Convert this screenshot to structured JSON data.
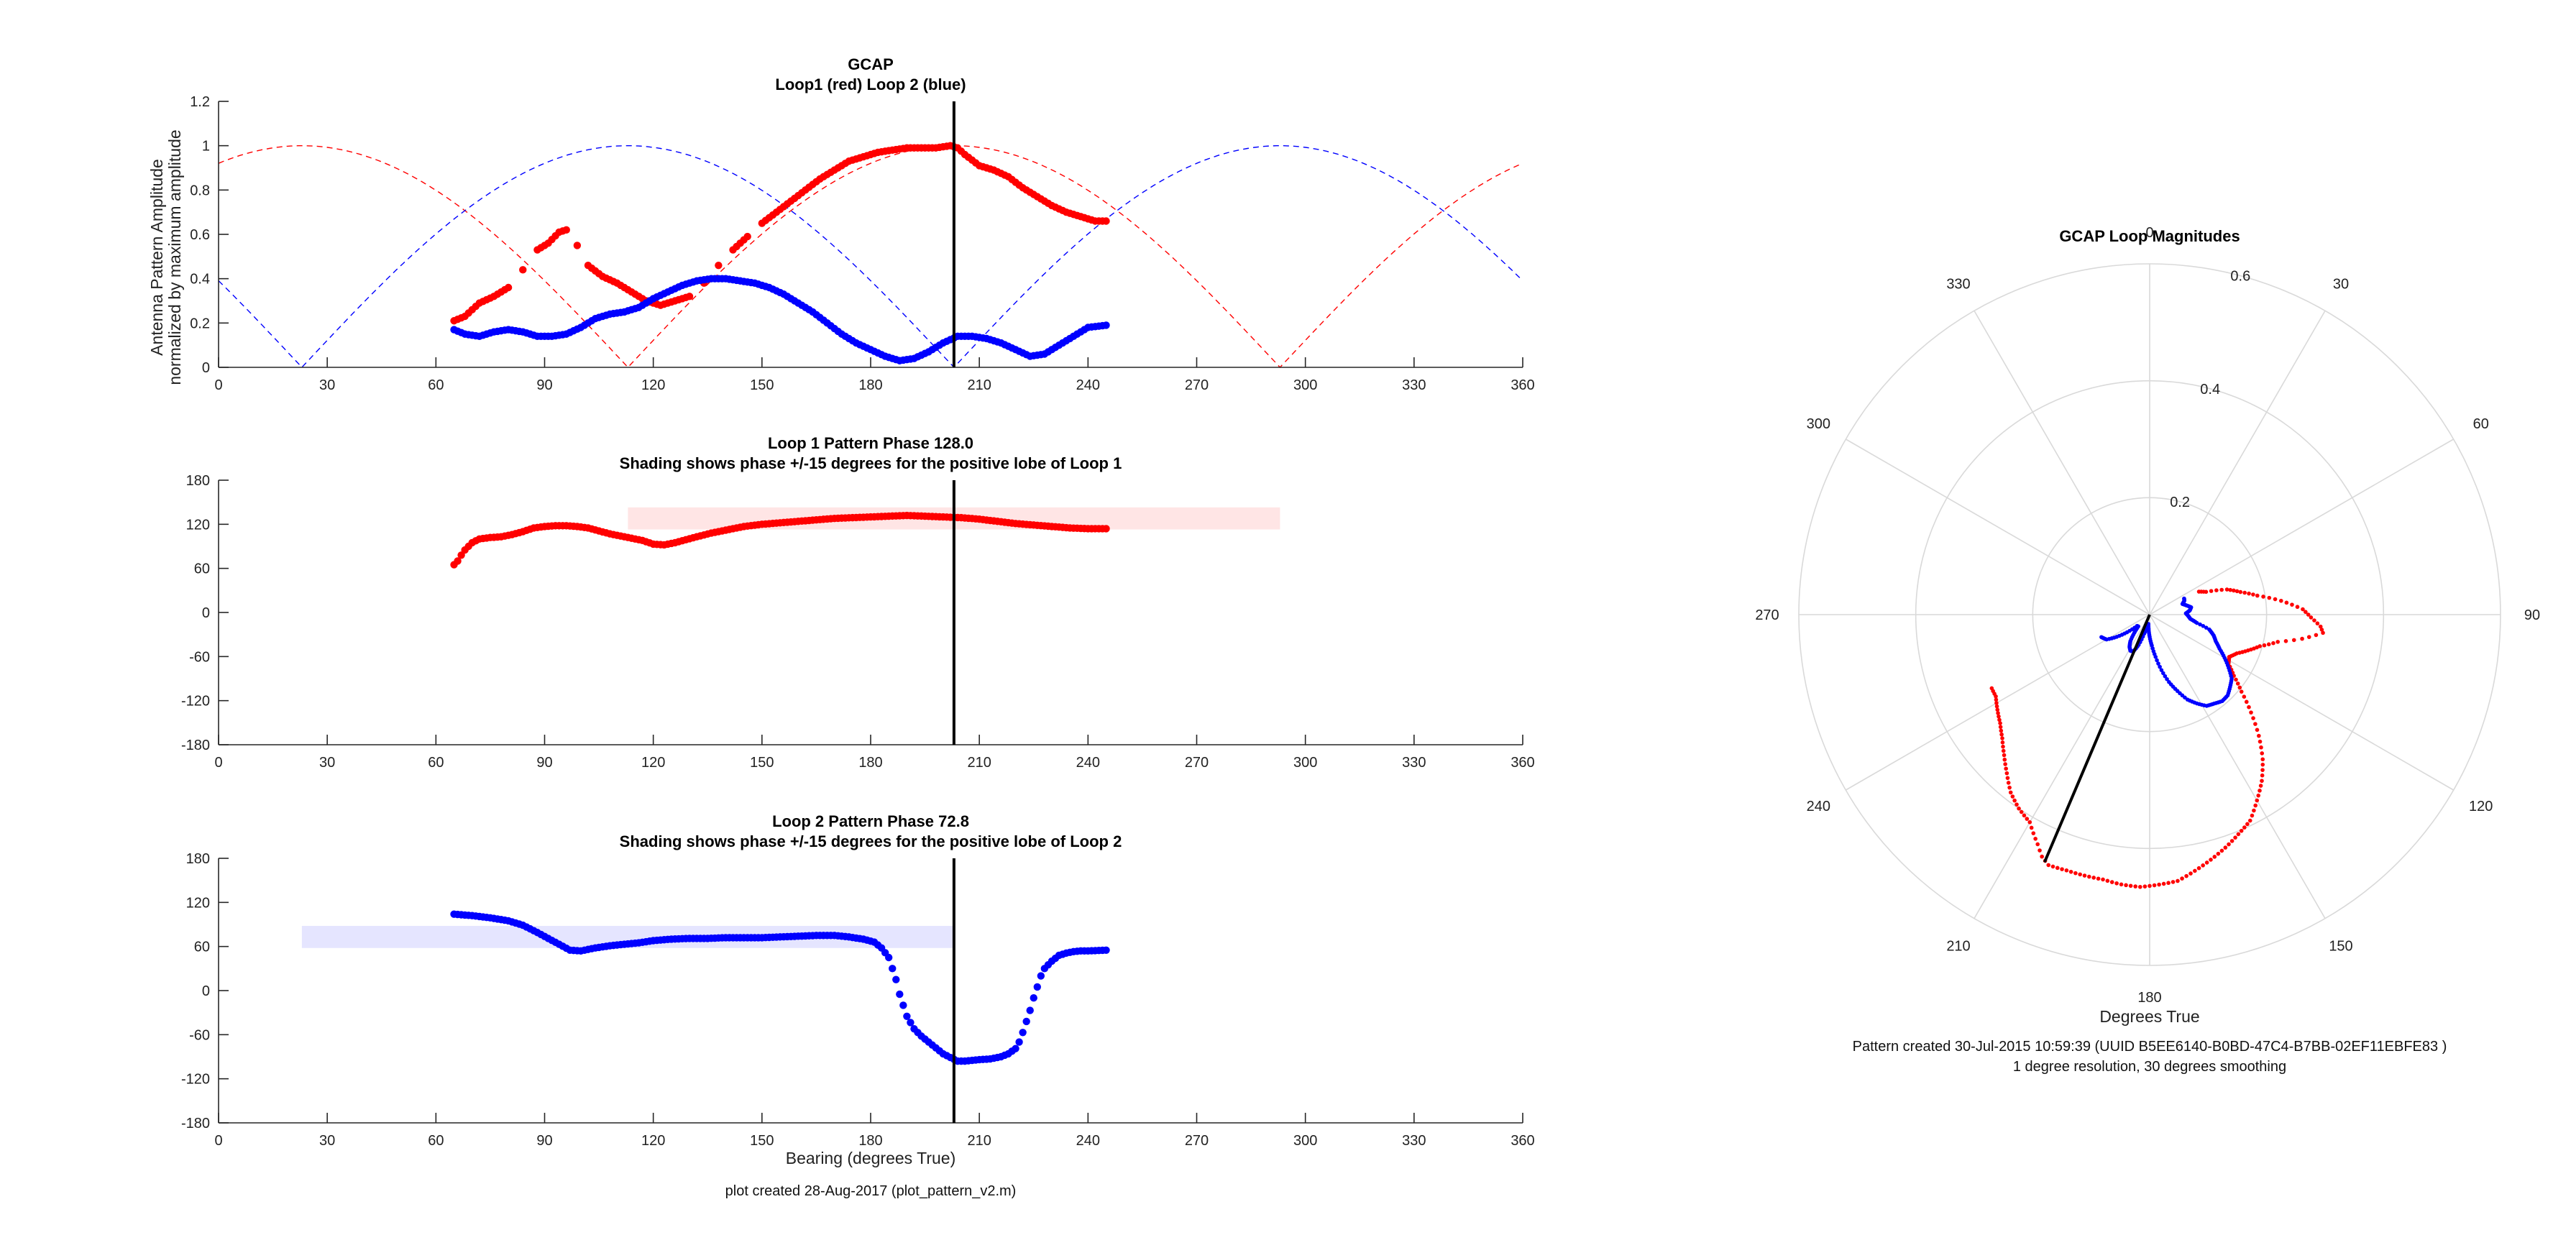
{
  "footer_note": "plot created 28-Aug-2017 (plot_pattern_v2.m)",
  "polar_note_line1": "Pattern created 30-Jul-2015 10:59:39 (UUID B5EE6140-B0BD-47C4-B7BB-02EF11EBFE83 )",
  "polar_note_line2": "1 degree resolution, 30 degrees smoothing",
  "colors": {
    "loop1": "#ff0000",
    "loop2": "#0000ff",
    "shade1": "#ffe5e5",
    "shade2": "#e5e5ff",
    "bearing_line": "#000000"
  },
  "chart_data": [
    {
      "type": "scatter",
      "title": "GCAP",
      "subtitle": "Loop1 (red) Loop 2 (blue)",
      "ylabel": "Antenna Pattern Amplitude",
      "ylabel2": "normalized by maximum amplitude",
      "xlabel": "",
      "xlim": [
        0,
        360
      ],
      "ylim": [
        0,
        1.2
      ],
      "xticks": [
        "0",
        "30",
        "60",
        "90",
        "120",
        "150",
        "180",
        "210",
        "240",
        "270",
        "300",
        "330",
        "360"
      ],
      "yticks": [
        "0",
        "0.2",
        "0.4",
        "0.6",
        "0.8",
        "1",
        "1.2"
      ],
      "bearing_marker": 203,
      "ideal_patterns": [
        {
          "series": "loop1",
          "style": "dashed",
          "formula": "abs(cos(theta - 203))"
        },
        {
          "series": "loop2",
          "style": "dashed",
          "formula": "abs(cos(theta - 113))"
        }
      ],
      "series": [
        {
          "key": "loop1",
          "x": [
            65,
            68,
            72,
            76,
            80,
            84,
            88,
            91,
            94,
            96,
            99,
            102,
            106,
            110,
            114,
            118,
            122,
            126,
            130,
            134,
            138,
            142,
            146,
            150,
            154,
            158,
            162,
            166,
            170,
            174,
            178,
            182,
            186,
            190,
            194,
            198,
            202,
            204,
            206,
            210,
            214,
            218,
            222,
            226,
            230,
            234,
            238,
            242,
            245
          ],
          "y": [
            0.21,
            0.23,
            0.29,
            0.32,
            0.36,
            0.44,
            0.53,
            0.56,
            0.61,
            0.62,
            0.55,
            0.46,
            0.41,
            0.38,
            0.34,
            0.3,
            0.28,
            0.3,
            0.32,
            0.38,
            0.46,
            0.53,
            0.59,
            0.65,
            0.7,
            0.75,
            0.8,
            0.85,
            0.89,
            0.93,
            0.95,
            0.97,
            0.98,
            0.99,
            0.99,
            0.99,
            1.0,
            0.99,
            0.96,
            0.91,
            0.89,
            0.86,
            0.81,
            0.77,
            0.73,
            0.7,
            0.68,
            0.66,
            0.66
          ]
        },
        {
          "key": "loop2",
          "x": [
            65,
            68,
            72,
            76,
            80,
            84,
            88,
            92,
            96,
            100,
            104,
            108,
            112,
            116,
            120,
            124,
            128,
            132,
            136,
            140,
            144,
            148,
            152,
            156,
            160,
            164,
            168,
            172,
            176,
            180,
            184,
            188,
            192,
            196,
            200,
            204,
            208,
            212,
            216,
            220,
            224,
            228,
            232,
            236,
            240,
            245
          ],
          "y": [
            0.17,
            0.15,
            0.14,
            0.16,
            0.17,
            0.16,
            0.14,
            0.14,
            0.15,
            0.18,
            0.22,
            0.24,
            0.25,
            0.27,
            0.31,
            0.34,
            0.37,
            0.39,
            0.4,
            0.4,
            0.39,
            0.38,
            0.36,
            0.33,
            0.29,
            0.25,
            0.2,
            0.15,
            0.11,
            0.08,
            0.05,
            0.03,
            0.04,
            0.07,
            0.11,
            0.14,
            0.14,
            0.13,
            0.11,
            0.08,
            0.05,
            0.06,
            0.1,
            0.14,
            0.18,
            0.19
          ]
        }
      ]
    },
    {
      "type": "scatter",
      "title": "Loop 1 Pattern Phase 128.0",
      "subtitle": "Shading shows phase +/-15 degrees for the positive lobe of Loop 1",
      "xlabel": "",
      "ylabel": "",
      "xlim": [
        0,
        360
      ],
      "ylim": [
        -180,
        180
      ],
      "xticks": [
        "0",
        "30",
        "60",
        "90",
        "120",
        "150",
        "180",
        "210",
        "240",
        "270",
        "300",
        "330",
        "360"
      ],
      "yticks": [
        "-180",
        "-120",
        "-60",
        "0",
        "60",
        "120",
        "180"
      ],
      "bearing_marker": 203,
      "shade": {
        "x": [
          113,
          293
        ],
        "y": [
          113,
          143
        ]
      },
      "series": [
        {
          "key": "loop1",
          "x": [
            65,
            66,
            67,
            68,
            70,
            72,
            75,
            78,
            81,
            84,
            87,
            90,
            93,
            96,
            99,
            102,
            105,
            108,
            111,
            114,
            117,
            120,
            123,
            126,
            129,
            132,
            136,
            140,
            145,
            150,
            155,
            160,
            165,
            170,
            175,
            180,
            185,
            190,
            195,
            200,
            205,
            210,
            215,
            220,
            225,
            230,
            235,
            240,
            245
          ],
          "y": [
            65,
            70,
            78,
            85,
            95,
            100,
            102,
            103,
            106,
            110,
            115,
            117,
            118,
            118,
            117,
            115,
            111,
            107,
            104,
            101,
            98,
            93,
            92,
            95,
            99,
            103,
            108,
            112,
            117,
            120,
            122,
            124,
            126,
            128,
            129,
            130,
            131,
            132,
            131,
            130,
            129,
            127,
            124,
            121,
            119,
            117,
            115,
            114,
            114
          ]
        }
      ]
    },
    {
      "type": "scatter",
      "title": "Loop 2 Pattern Phase 72.8",
      "subtitle": "Shading shows phase +/-15 degrees for the positive lobe of Loop 2",
      "xlabel": "Bearing (degrees True)",
      "ylabel": "",
      "xlim": [
        0,
        360
      ],
      "ylim": [
        -180,
        180
      ],
      "xticks": [
        "0",
        "30",
        "60",
        "90",
        "120",
        "150",
        "180",
        "210",
        "240",
        "270",
        "300",
        "330",
        "360"
      ],
      "yticks": [
        "-180",
        "-120",
        "-60",
        "0",
        "60",
        "120",
        "180"
      ],
      "bearing_marker": 203,
      "shade": {
        "x": [
          23,
          203
        ],
        "y": [
          58,
          88
        ]
      },
      "series": [
        {
          "key": "loop2",
          "x": [
            65,
            70,
            75,
            80,
            84,
            88,
            91,
            94,
            97,
            100,
            104,
            108,
            112,
            116,
            120,
            125,
            130,
            135,
            140,
            145,
            150,
            155,
            160,
            165,
            170,
            174,
            178,
            181,
            183,
            185,
            186,
            187,
            188,
            189,
            190,
            192,
            194,
            196,
            198,
            200,
            202,
            204,
            206,
            208,
            210,
            213,
            216,
            218,
            220,
            221,
            222,
            223,
            224,
            225,
            226,
            227,
            228,
            230,
            232,
            234,
            236,
            238,
            240,
            245
          ],
          "y": [
            104,
            102,
            99,
            95,
            89,
            79,
            71,
            63,
            55,
            54,
            58,
            61,
            63,
            65,
            68,
            70,
            71,
            71,
            72,
            72,
            72,
            73,
            74,
            75,
            75,
            73,
            70,
            66,
            58,
            45,
            30,
            15,
            -5,
            -20,
            -35,
            -52,
            -62,
            -70,
            -78,
            -86,
            -91,
            -96,
            -96,
            -95,
            -94,
            -93,
            -90,
            -86,
            -79,
            -70,
            -57,
            -42,
            -27,
            -10,
            5,
            20,
            30,
            40,
            48,
            51,
            53,
            54,
            54,
            55
          ]
        }
      ]
    },
    {
      "type": "polar",
      "title": "GCAP Loop Magnitudes",
      "xlabel": "Degrees True",
      "rlim": [
        0,
        0.6
      ],
      "rticks": [
        "0.2",
        "0.4",
        "0.6"
      ],
      "theta_ticks": [
        "0",
        "30",
        "60",
        "90",
        "120",
        "150",
        "180",
        "210",
        "240",
        "270",
        "300",
        "330"
      ],
      "bearing_marker": 203,
      "bearing_marker_r": 0.46,
      "series": [
        {
          "key": "loop1",
          "theta": [
            65,
            68,
            72,
            76,
            80,
            84,
            88,
            91,
            94,
            96,
            99,
            102,
            106,
            110,
            114,
            118,
            122,
            126,
            130,
            134,
            138,
            142,
            146,
            150,
            154,
            158,
            162,
            166,
            170,
            174,
            178,
            182,
            186,
            190,
            194,
            198,
            202,
            204,
            206,
            210,
            214,
            218,
            222,
            226,
            230,
            234,
            238,
            242,
            245
          ],
          "r": [
            0.093,
            0.104,
            0.139,
            0.16,
            0.187,
            0.226,
            0.262,
            0.276,
            0.293,
            0.298,
            0.264,
            0.224,
            0.196,
            0.179,
            0.163,
            0.154,
            0.159,
            0.178,
            0.205,
            0.241,
            0.279,
            0.314,
            0.343,
            0.367,
            0.392,
            0.405,
            0.419,
            0.432,
            0.445,
            0.458,
            0.462,
            0.466,
            0.464,
            0.46,
            0.46,
            0.46,
            0.462,
            0.453,
            0.437,
            0.41,
            0.4,
            0.386,
            0.365,
            0.346,
            0.329,
            0.316,
            0.307,
            0.298,
            0.298
          ]
        },
        {
          "key": "loop2",
          "theta": [
            65,
            68,
            72,
            76,
            80,
            84,
            88,
            92,
            96,
            100,
            104,
            108,
            112,
            116,
            120,
            124,
            128,
            132,
            136,
            140,
            144,
            148,
            152,
            156,
            160,
            164,
            168,
            172,
            176,
            180,
            184,
            188,
            192,
            196,
            200,
            204,
            208,
            212,
            216,
            220,
            224,
            228,
            232,
            236,
            240,
            245
          ],
          "r": [
            0.065,
            0.064,
            0.059,
            0.065,
            0.072,
            0.069,
            0.062,
            0.066,
            0.07,
            0.082,
            0.105,
            0.115,
            0.122,
            0.133,
            0.148,
            0.163,
            0.178,
            0.185,
            0.192,
            0.193,
            0.188,
            0.184,
            0.172,
            0.159,
            0.139,
            0.12,
            0.097,
            0.073,
            0.053,
            0.038,
            0.025,
            0.016,
            0.02,
            0.034,
            0.055,
            0.069,
            0.07,
            0.065,
            0.056,
            0.041,
            0.028,
            0.029,
            0.049,
            0.068,
            0.085,
            0.091
          ]
        }
      ]
    }
  ]
}
